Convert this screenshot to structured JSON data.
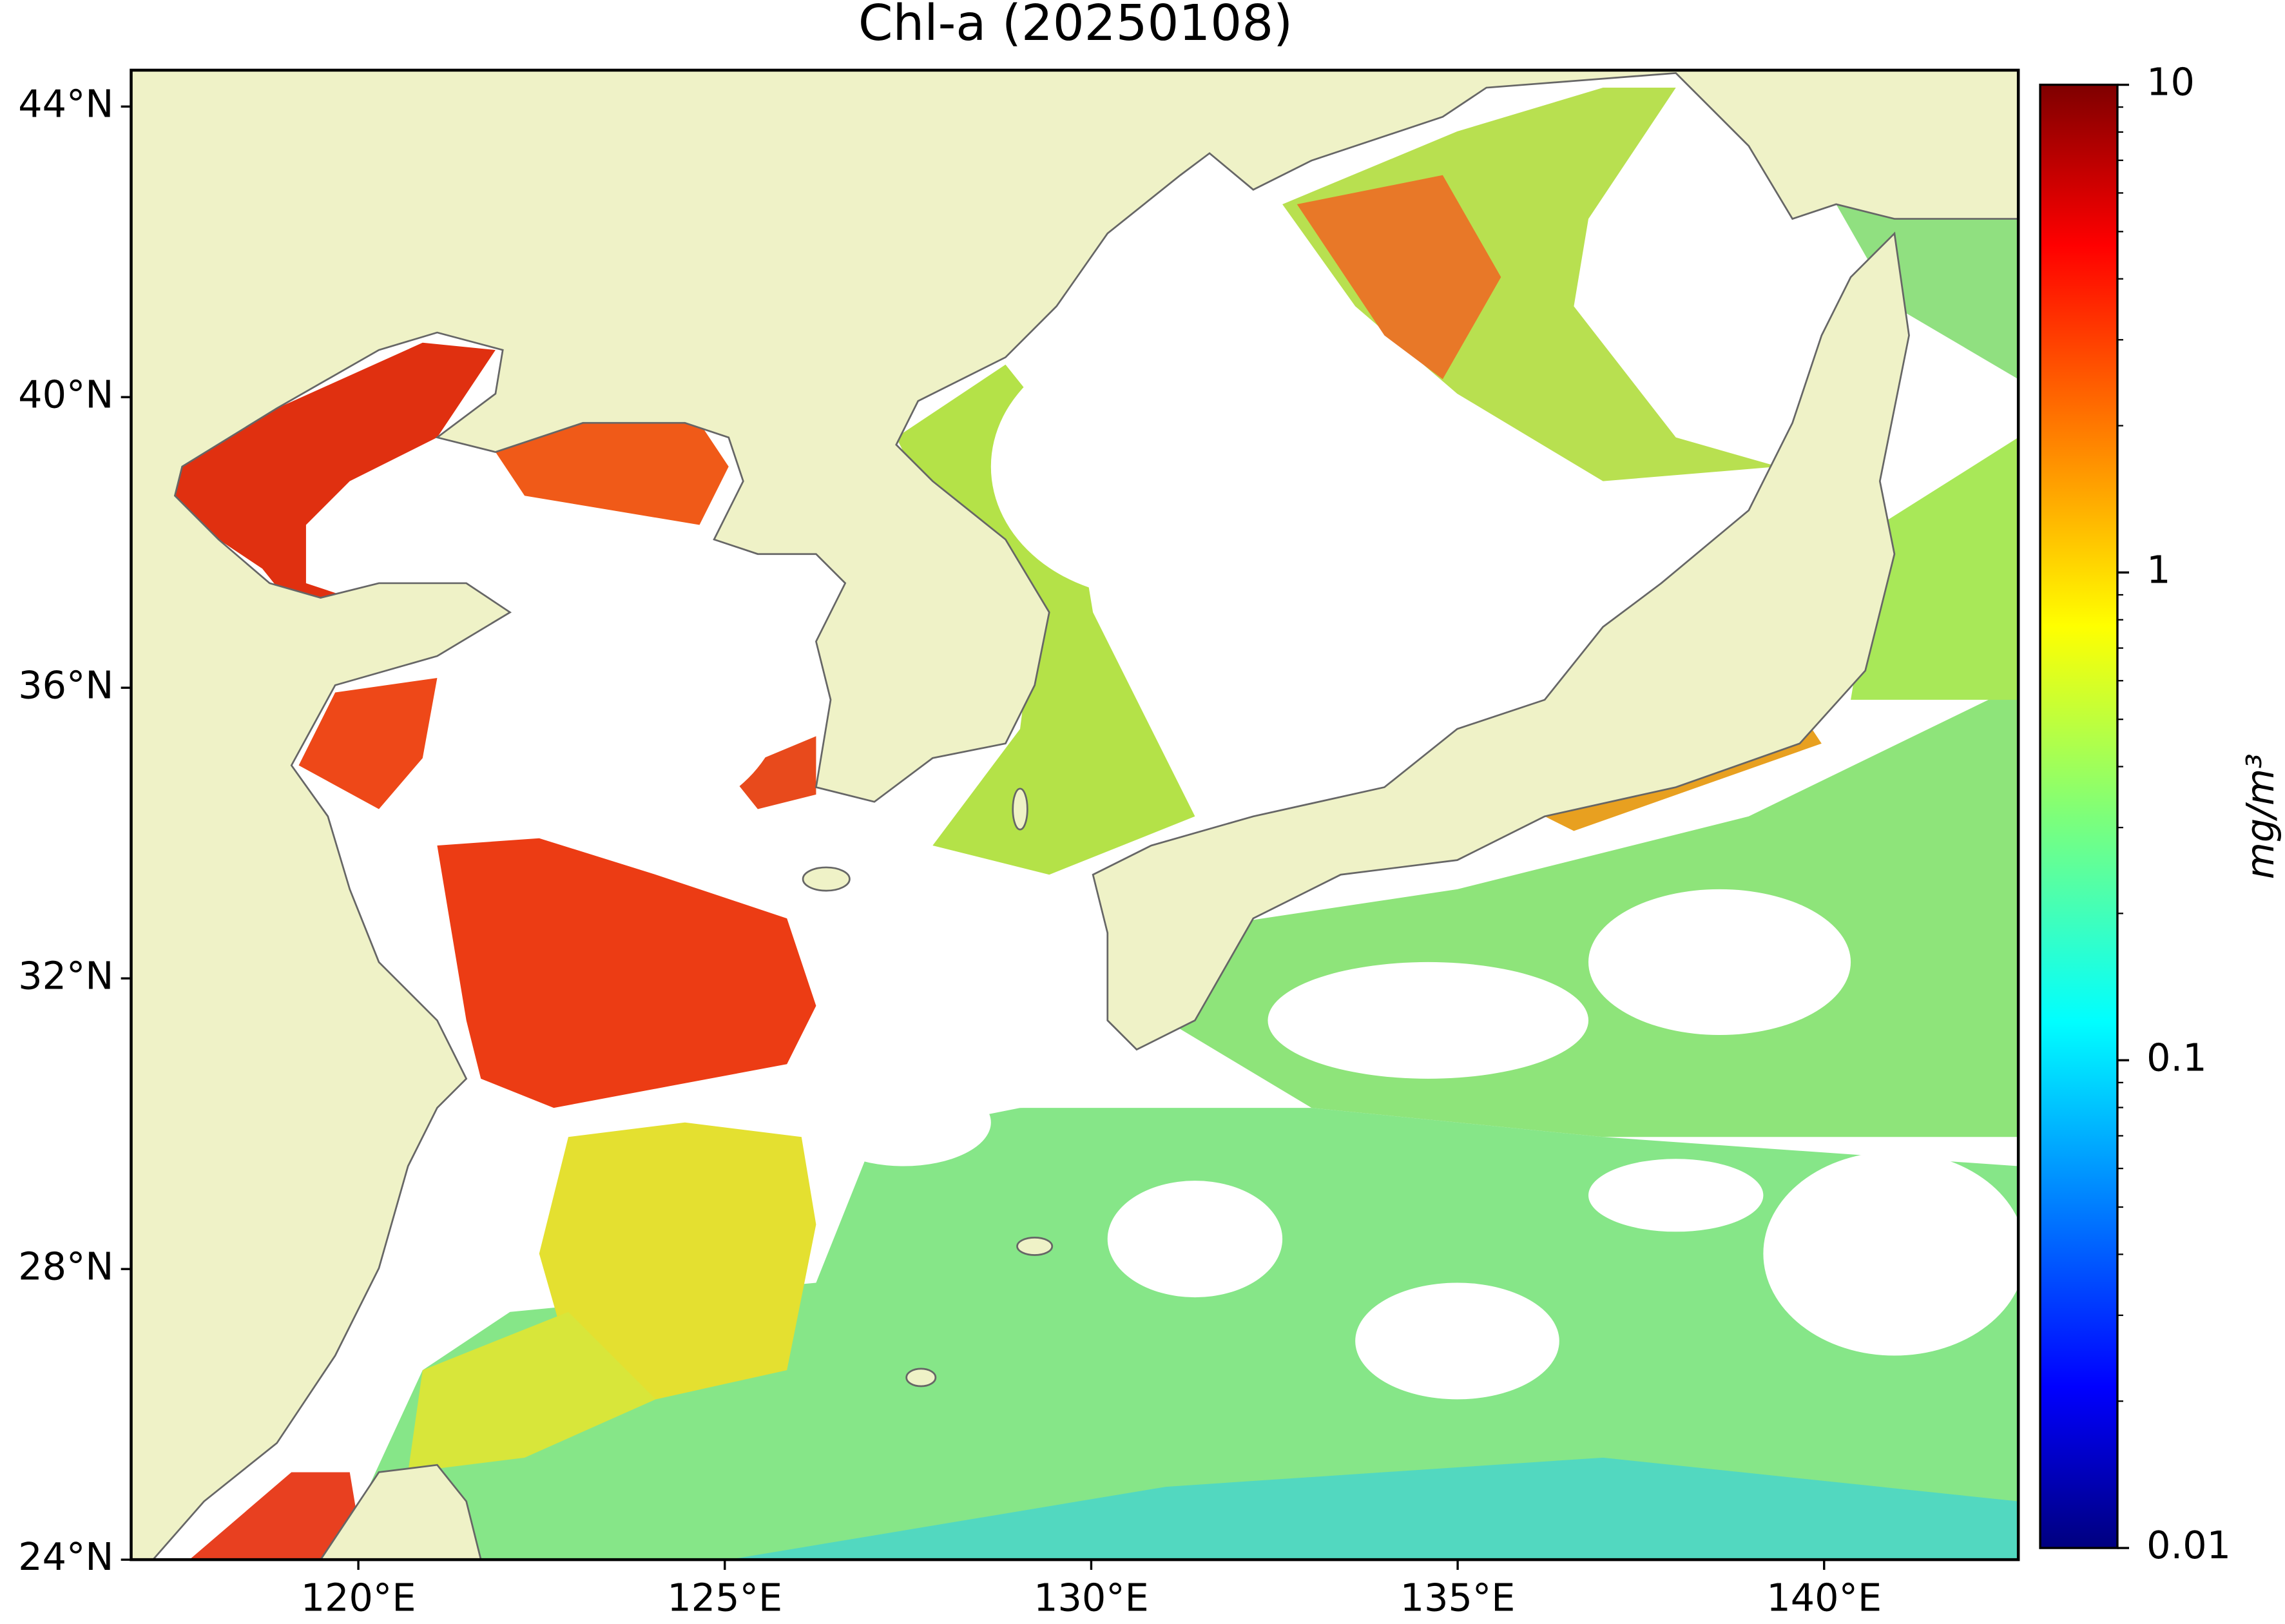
{
  "chart_data": {
    "type": "map",
    "title": "Chl-a (20250108)",
    "xlim": [
      116.9,
      142.65
    ],
    "ylim": [
      24,
      44.5
    ],
    "xticks": [
      {
        "value": 120,
        "label": "120°E"
      },
      {
        "value": 125,
        "label": "125°E"
      },
      {
        "value": 130,
        "label": "130°E"
      },
      {
        "value": 135,
        "label": "135°E"
      },
      {
        "value": 140,
        "label": "140°E"
      }
    ],
    "yticks": [
      {
        "value": 24,
        "label": "24°N"
      },
      {
        "value": 28,
        "label": "28°N"
      },
      {
        "value": 32,
        "label": "32°N"
      },
      {
        "value": 36,
        "label": "36°N"
      },
      {
        "value": 40,
        "label": "40°N"
      },
      {
        "value": 44,
        "label": "44°N"
      }
    ],
    "colorbar": {
      "label": "mg/m³",
      "lim": [
        0.01,
        10
      ],
      "log": true,
      "colormap": "jet",
      "ticks": [
        0.01,
        0.1,
        1,
        10
      ],
      "minor_ticks": [
        0.02,
        0.03,
        0.04,
        0.05,
        0.06,
        0.07,
        0.08,
        0.09,
        0.2,
        0.3,
        0.4,
        0.5,
        0.6,
        0.7,
        0.8,
        0.9,
        2,
        3,
        4,
        5,
        6,
        7,
        8,
        9
      ]
    }
  }
}
